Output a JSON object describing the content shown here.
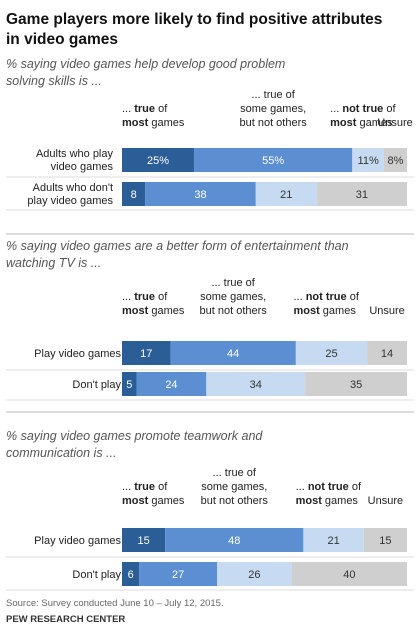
{
  "title": "Game players more likely to find positive attributes in video games",
  "source": "Source: Survey conducted June 10 – July 12, 2015.",
  "brand": "PEW RESEARCH CENTER",
  "colors": {
    "true_most": "#2b5d96",
    "true_some": "#5b8fd1",
    "not_true": "#c6dbf1",
    "unsure": "#cfcfcf",
    "text_dark_bar": "#ffffff",
    "text_light_bar": "#333333"
  },
  "chart_data": [
    {
      "type": "bar",
      "stacked": true,
      "orientation": "horizontal",
      "subtitle": "% saying video games help develop good problem solving skills is ...",
      "subtitle_lines": [
        "% saying video games help develop good problem",
        "solving skills is ..."
      ],
      "legend": [
        "... true of most games",
        "... true of some games, but not others",
        "... not true of most games",
        "Unsure"
      ],
      "categories": [
        "Adults who play video games",
        "Adults who don't play video games"
      ],
      "category_lines": [
        [
          "Adults who play",
          "video games"
        ],
        [
          "Adults who don't",
          "play video games"
        ]
      ],
      "series": [
        {
          "name": "... true of most games",
          "values": [
            25,
            8
          ],
          "labels": [
            "25%",
            "8"
          ]
        },
        {
          "name": "... true of some games, but not others",
          "values": [
            55,
            38
          ],
          "labels": [
            "55%",
            "38"
          ]
        },
        {
          "name": "... not true of most games",
          "values": [
            11,
            21
          ],
          "labels": [
            "11%",
            "21"
          ]
        },
        {
          "name": "Unsure",
          "values": [
            8,
            31
          ],
          "labels": [
            "8%",
            "31"
          ]
        }
      ]
    },
    {
      "type": "bar",
      "stacked": true,
      "orientation": "horizontal",
      "subtitle": "% saying video games are a better form of entertainment than watching TV is ...",
      "subtitle_lines": [
        "% saying video games are a better form of entertainment than",
        "watching TV is ..."
      ],
      "legend": [
        "... true of most games",
        "... true of some games, but not others",
        "... not true of most games",
        "Unsure"
      ],
      "categories": [
        "Play video games",
        "Don't play"
      ],
      "category_lines": [
        [
          "Play video games"
        ],
        [
          "Don't play"
        ]
      ],
      "series": [
        {
          "name": "... true of most games",
          "values": [
            17,
            5
          ],
          "labels": [
            "17",
            "5"
          ]
        },
        {
          "name": "... true of some games, but not others",
          "values": [
            44,
            24
          ],
          "labels": [
            "44",
            "24"
          ]
        },
        {
          "name": "... not true of most games",
          "values": [
            25,
            34
          ],
          "labels": [
            "25",
            "34"
          ]
        },
        {
          "name": "Unsure",
          "values": [
            14,
            35
          ],
          "labels": [
            "14",
            "35"
          ]
        }
      ]
    },
    {
      "type": "bar",
      "stacked": true,
      "orientation": "horizontal",
      "subtitle": "% saying video games promote teamwork and communication is ...",
      "subtitle_lines": [
        "% saying video games promote teamwork and",
        "communication is ..."
      ],
      "legend": [
        "... true of most games",
        "... true of some games, but not others",
        "... not true of most games",
        "Unsure"
      ],
      "categories": [
        "Play video games",
        "Don't play"
      ],
      "category_lines": [
        [
          "Play video games"
        ],
        [
          "Don't play"
        ]
      ],
      "series": [
        {
          "name": "... true of most games",
          "values": [
            15,
            6
          ],
          "labels": [
            "15",
            "6"
          ]
        },
        {
          "name": "... true of some games, but not others",
          "values": [
            48,
            27
          ],
          "labels": [
            "48",
            "27"
          ]
        },
        {
          "name": "... not true of most games",
          "values": [
            21,
            26
          ],
          "labels": [
            "21",
            "26"
          ]
        },
        {
          "name": "Unsure",
          "values": [
            15,
            40
          ],
          "labels": [
            "15",
            "40"
          ]
        }
      ]
    }
  ]
}
